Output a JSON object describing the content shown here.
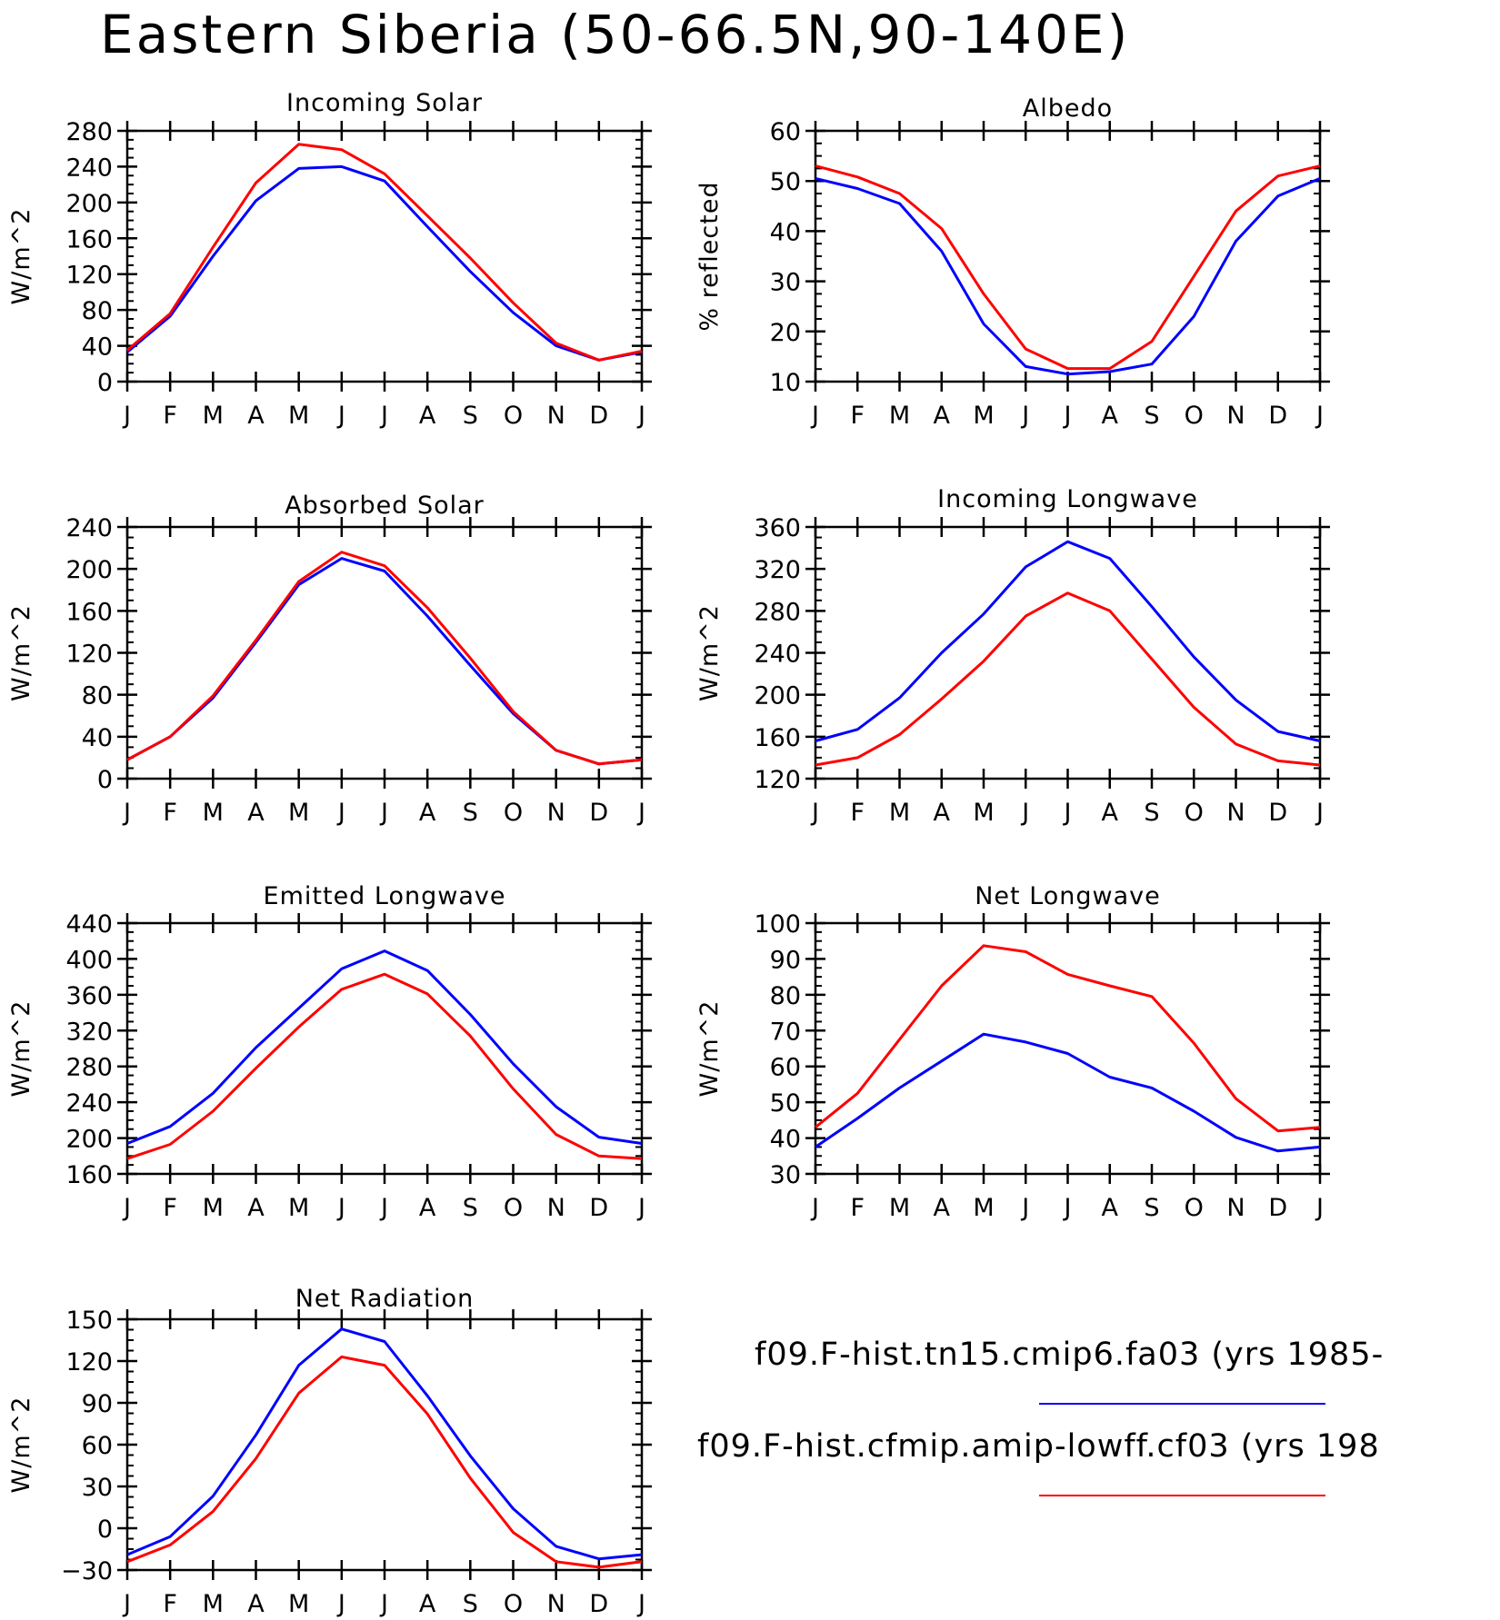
{
  "title": "Eastern Siberia (50-66.5N,90-140E)",
  "colors": {
    "series1": "#0000ff",
    "series2": "#ff0000"
  },
  "legend": [
    {
      "label": "f09.F-hist.tn15.cmip6.fa03 (yrs 1985-",
      "color": "#0000ff"
    },
    {
      "label": "f09.F-hist.cfmip.amip-lowff.cf03 (yrs 198",
      "color": "#ff0000"
    }
  ],
  "chart_data": [
    {
      "type": "line",
      "title": "Incoming Solar",
      "ylabel": "W/m^2",
      "categories": [
        "J",
        "F",
        "M",
        "A",
        "M",
        "J",
        "J",
        "A",
        "S",
        "O",
        "N",
        "D",
        "J"
      ],
      "ylim": [
        0,
        280
      ],
      "yticks": [
        0,
        40,
        80,
        120,
        160,
        200,
        240,
        280
      ],
      "series": [
        {
          "values": [
            33,
            73,
            140,
            202,
            238,
            240,
            224,
            173,
            123,
            77,
            40,
            24,
            33
          ]
        },
        {
          "values": [
            35,
            76,
            150,
            222,
            265,
            259,
            232,
            185,
            138,
            88,
            43,
            24,
            34
          ]
        }
      ]
    },
    {
      "type": "line",
      "title": "Albedo",
      "ylabel": "% reflected",
      "categories": [
        "J",
        "F",
        "M",
        "A",
        "M",
        "J",
        "J",
        "A",
        "S",
        "O",
        "N",
        "D",
        "J"
      ],
      "ylim": [
        10,
        60
      ],
      "yticks": [
        10,
        20,
        30,
        40,
        50,
        60
      ],
      "series": [
        {
          "values": [
            50.5,
            48.5,
            45.5,
            36,
            21.5,
            13,
            11.5,
            12,
            13.5,
            23,
            38,
            47,
            50.5
          ]
        },
        {
          "values": [
            53,
            50.8,
            47.5,
            40.5,
            27.5,
            16.5,
            12.6,
            12.6,
            18,
            31,
            44,
            51,
            53
          ]
        }
      ]
    },
    {
      "type": "line",
      "title": "Absorbed Solar",
      "ylabel": "W/m^2",
      "categories": [
        "J",
        "F",
        "M",
        "A",
        "M",
        "J",
        "J",
        "A",
        "S",
        "O",
        "N",
        "D",
        "J"
      ],
      "ylim": [
        0,
        240
      ],
      "yticks": [
        0,
        40,
        80,
        120,
        160,
        200,
        240
      ],
      "series": [
        {
          "values": [
            18,
            40,
            77,
            130,
            185,
            210,
            198,
            155,
            108,
            62,
            27,
            14,
            18
          ]
        },
        {
          "values": [
            18,
            40,
            79,
            132,
            188,
            216,
            203,
            163,
            115,
            64,
            27,
            14,
            18
          ]
        }
      ]
    },
    {
      "type": "line",
      "title": "Incoming Longwave",
      "ylabel": "W/m^2",
      "categories": [
        "J",
        "F",
        "M",
        "A",
        "M",
        "J",
        "J",
        "A",
        "S",
        "O",
        "N",
        "D",
        "J"
      ],
      "ylim": [
        120,
        360
      ],
      "yticks": [
        120,
        160,
        200,
        240,
        280,
        320,
        360
      ],
      "series": [
        {
          "values": [
            156,
            167,
            197,
            240,
            277,
            322,
            346,
            330,
            284,
            236,
            195,
            165,
            156
          ]
        },
        {
          "values": [
            133,
            140,
            162,
            196,
            232,
            275,
            297,
            280,
            234,
            188,
            153,
            137,
            133
          ]
        }
      ]
    },
    {
      "type": "line",
      "title": "Emitted Longwave",
      "ylabel": "W/m^2",
      "categories": [
        "J",
        "F",
        "M",
        "A",
        "M",
        "J",
        "J",
        "A",
        "S",
        "O",
        "N",
        "D",
        "J"
      ],
      "ylim": [
        160,
        440
      ],
      "yticks": [
        160,
        200,
        240,
        280,
        320,
        360,
        400,
        440
      ],
      "series": [
        {
          "values": [
            194,
            213,
            250,
            301,
            345,
            389,
            409,
            387,
            338,
            283,
            235,
            201,
            194
          ]
        },
        {
          "values": [
            177,
            193,
            230,
            278,
            324,
            366,
            383,
            361,
            314,
            255,
            204,
            180,
            177
          ]
        }
      ]
    },
    {
      "type": "line",
      "title": "Net Longwave",
      "ylabel": "W/m^2",
      "categories": [
        "J",
        "F",
        "M",
        "A",
        "M",
        "J",
        "J",
        "A",
        "S",
        "O",
        "N",
        "D",
        "J"
      ],
      "ylim": [
        30,
        100
      ],
      "yticks": [
        30,
        40,
        50,
        60,
        70,
        80,
        90,
        100
      ],
      "series": [
        {
          "values": [
            37.5,
            45.5,
            54,
            61.5,
            69,
            66.8,
            63.6,
            57,
            54,
            47.5,
            40.2,
            36.4,
            37.5
          ]
        },
        {
          "values": [
            43,
            52.5,
            67.5,
            82.5,
            93.7,
            92,
            85.7,
            82.5,
            79.5,
            66.5,
            51,
            42,
            43
          ]
        }
      ]
    },
    {
      "type": "line",
      "title": "Net Radiation",
      "ylabel": "W/m^2",
      "categories": [
        "J",
        "F",
        "M",
        "A",
        "M",
        "J",
        "J",
        "A",
        "S",
        "O",
        "N",
        "D",
        "J"
      ],
      "ylim": [
        -30,
        150
      ],
      "yticks": [
        -30,
        0,
        30,
        60,
        90,
        120,
        150
      ],
      "series": [
        {
          "values": [
            -19,
            -6,
            23,
            67,
            117,
            143,
            134,
            95,
            52,
            14,
            -13,
            -22,
            -19
          ]
        },
        {
          "values": [
            -24,
            -12,
            12,
            50,
            97,
            123,
            117,
            82,
            36,
            -3,
            -24,
            -28,
            -24
          ]
        }
      ]
    }
  ]
}
